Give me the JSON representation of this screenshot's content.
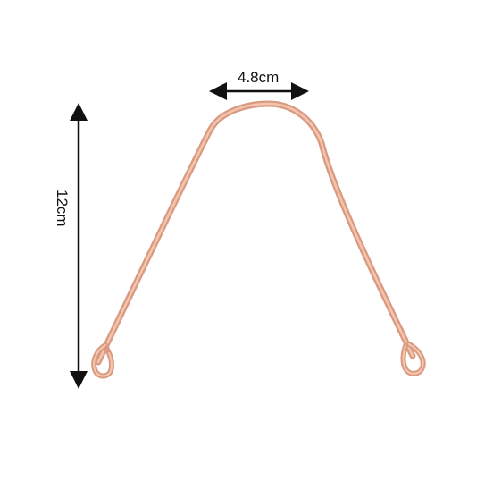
{
  "dimensions": {
    "width_label": "4.8cm",
    "height_label": "12cm"
  },
  "colors": {
    "background": "#ffffff",
    "copper_light": "#f4c4ae",
    "copper_mid": "#e7a98e",
    "copper_dark": "#cf8a70",
    "text": "#111111"
  }
}
